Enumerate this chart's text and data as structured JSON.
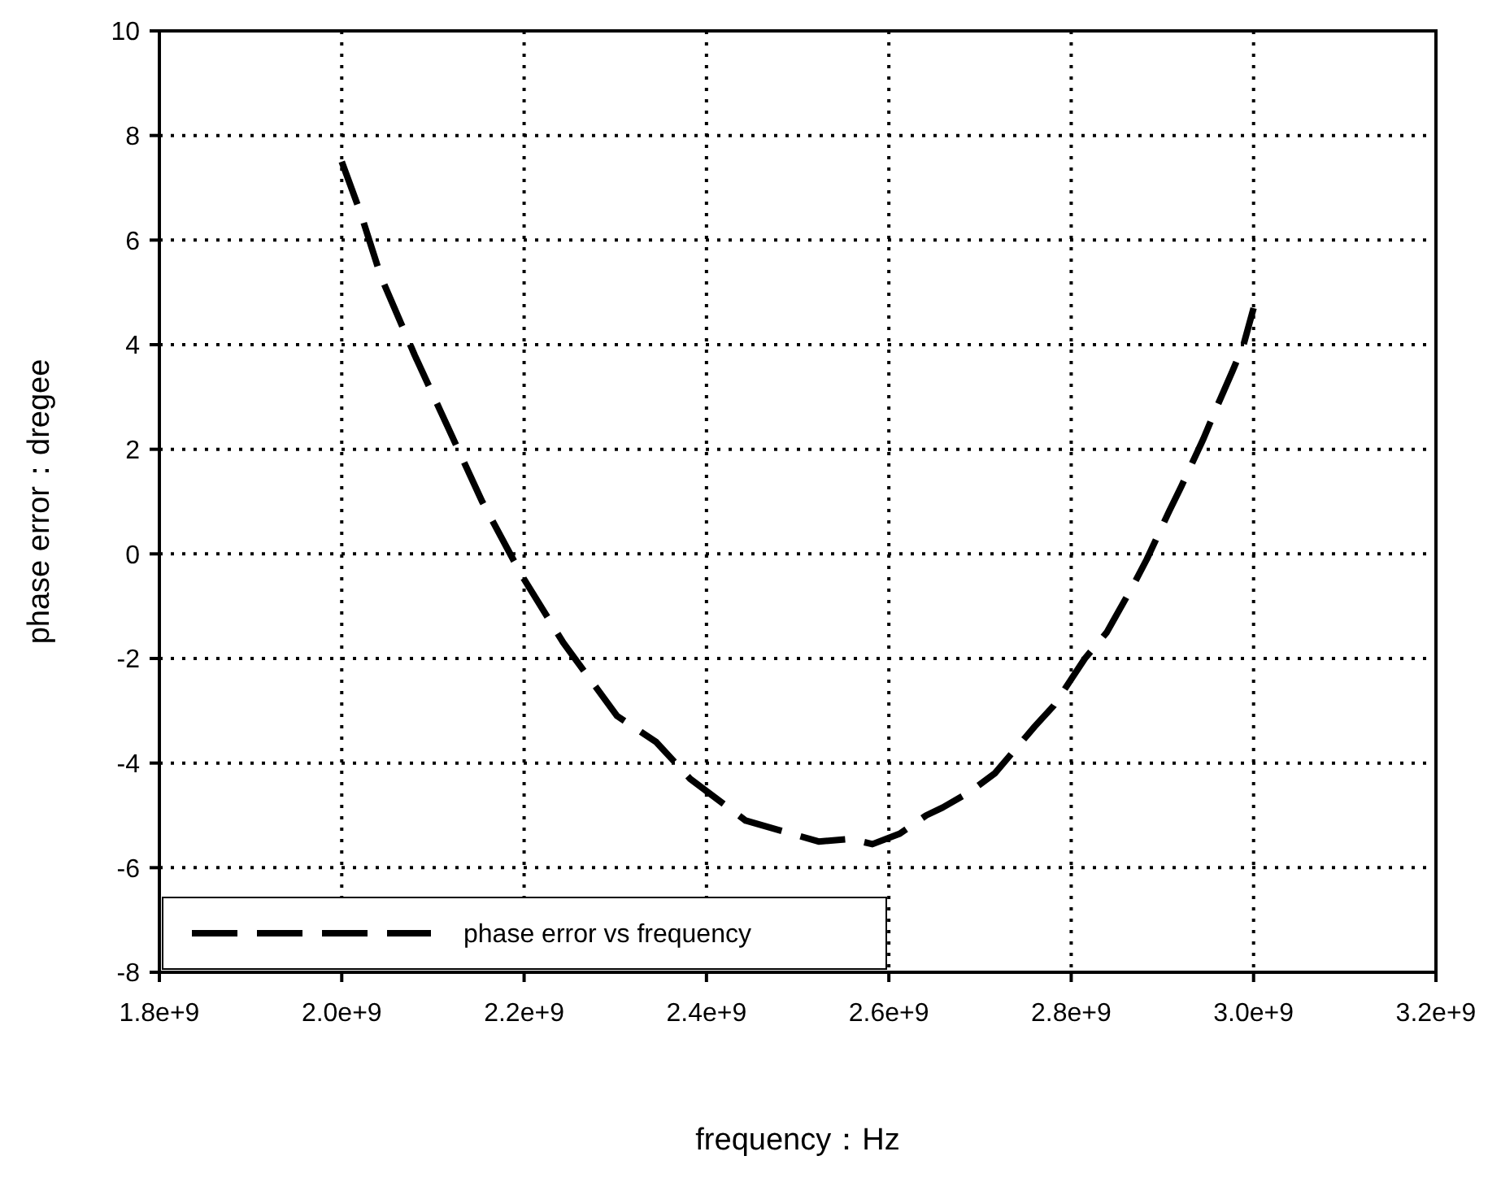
{
  "chart_data": {
    "type": "line",
    "xlabel": "frequency：Hz",
    "ylabel": "phase error：dregee",
    "xlim": [
      1800000000,
      3200000000
    ],
    "xticks": [
      {
        "value": 1800000000,
        "label": "1.8e+9"
      },
      {
        "value": 2000000000,
        "label": "2.0e+9"
      },
      {
        "value": 2200000000,
        "label": "2.2e+9"
      },
      {
        "value": 2400000000,
        "label": "2.4e+9"
      },
      {
        "value": 2600000000,
        "label": "2.6e+9"
      },
      {
        "value": 2800000000,
        "label": "2.8e+9"
      },
      {
        "value": 3000000000,
        "label": "3.0e+9"
      },
      {
        "value": 3200000000,
        "label": "3.2e+9"
      }
    ],
    "ylim": [
      -8,
      10
    ],
    "yticks": [
      -8,
      -6,
      -4,
      -2,
      0,
      2,
      4,
      6,
      8,
      10
    ],
    "grid": true,
    "legend": "bottom left",
    "line_style": "dashed",
    "series": [
      {
        "name": "phase error vs frequency",
        "color": "#000000",
        "x": [
          2000000000,
          2021000000,
          2043000000,
          2080000000,
          2117000000,
          2154000000,
          2197000000,
          2243000000,
          2302000000,
          2345000000,
          2382000000,
          2443000000,
          2523000000,
          2558000000,
          2582000000,
          2612000000,
          2641000000,
          2659000000,
          2689000000,
          2716000000,
          2760000000,
          2781000000,
          2815000000,
          2839000000,
          2868000000,
          2883000000,
          2907000000,
          2921000000,
          2945000000,
          2957000000,
          2977000000,
          2989000000,
          3000000000
        ],
        "values": [
          7.5,
          6.5,
          5.3,
          3.8,
          2.4,
          1.0,
          -0.4,
          -1.7,
          -3.1,
          -3.6,
          -4.3,
          -5.1,
          -5.5,
          -5.45,
          -5.55,
          -5.35,
          -5.0,
          -4.85,
          -4.55,
          -4.2,
          -3.3,
          -2.9,
          -2.0,
          -1.5,
          -0.6,
          -0.1,
          0.8,
          1.3,
          2.2,
          2.7,
          3.5,
          4.0,
          4.7
        ]
      }
    ]
  }
}
